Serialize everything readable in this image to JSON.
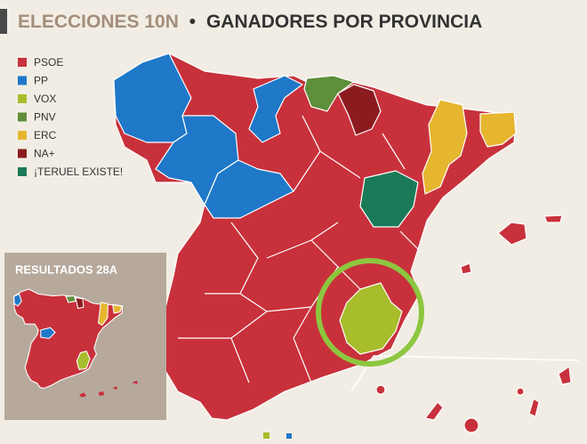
{
  "header": {
    "title_prefix": "ELECCIONES 10N",
    "separator": "•",
    "title": "GANADORES POR PROVINCIA"
  },
  "legend": [
    {
      "label": "PSOE",
      "color": "#c8313b"
    },
    {
      "label": "PP",
      "color": "#1f78c8"
    },
    {
      "label": "VOX",
      "color": "#a8bd2c"
    },
    {
      "label": "PNV",
      "color": "#5e8f3b"
    },
    {
      "label": "ERC",
      "color": "#e6b62f"
    },
    {
      "label": "NA+",
      "color": "#8b1b1e"
    },
    {
      "label": "¡TERUEL EXISTE!",
      "color": "#1b7a58"
    }
  ],
  "inset": {
    "title": "RESULTADOS 28A"
  }
}
